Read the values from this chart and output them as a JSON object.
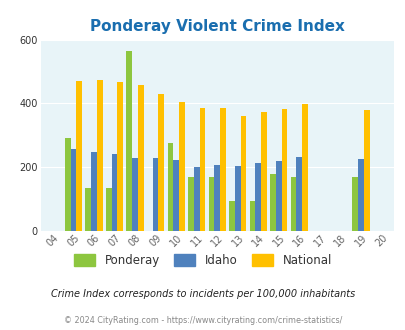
{
  "title": "Ponderay Violent Crime Index",
  "years": [
    "04",
    "05",
    "06",
    "07",
    "08",
    "09",
    "10",
    "11",
    "12",
    "13",
    "14",
    "15",
    "16",
    "17",
    "18",
    "19",
    "20"
  ],
  "ponderay": [
    null,
    290,
    135,
    135,
    565,
    null,
    275,
    170,
    170,
    95,
    95,
    180,
    170,
    null,
    null,
    170,
    null
  ],
  "idaho": [
    null,
    257,
    247,
    240,
    230,
    230,
    222,
    202,
    208,
    205,
    213,
    218,
    232,
    null,
    null,
    225,
    null
  ],
  "national": [
    null,
    469,
    474,
    466,
    458,
    430,
    404,
    387,
    387,
    362,
    372,
    383,
    398,
    null,
    null,
    379,
    null
  ],
  "color_ponderay": "#8dc63f",
  "color_idaho": "#4f81bd",
  "color_national": "#ffc000",
  "bg_color": "#e8f4f8",
  "title_color": "#1a6eaf",
  "ylabel_max": 600,
  "yticks": [
    0,
    200,
    400,
    600
  ],
  "subtitle": "Crime Index corresponds to incidents per 100,000 inhabitants",
  "footer": "© 2024 CityRating.com - https://www.cityrating.com/crime-statistics/",
  "bar_width": 0.28
}
